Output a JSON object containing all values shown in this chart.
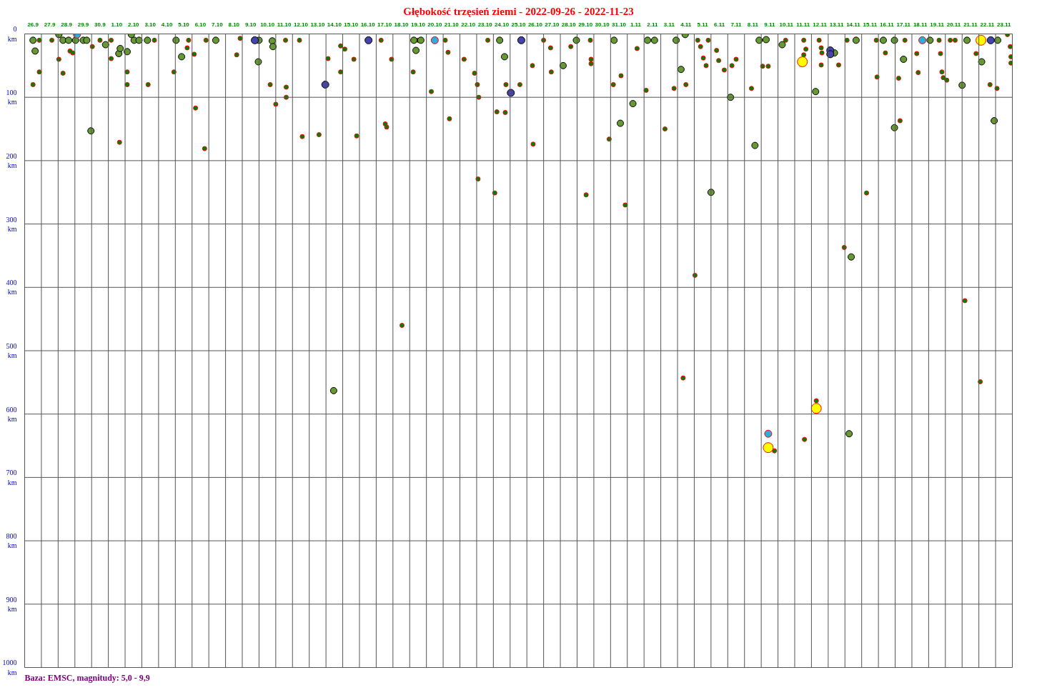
{
  "chart_data": {
    "type": "scatter",
    "title": "Głębokość trzęsień ziemi - 2022-09-26 - 2022-11-23",
    "annotations": [
      "Baza: EMSC, magnitudy: 5,0 - 9,9"
    ],
    "marker": "circle",
    "grid": true,
    "xlim": [
      "2022-09-26",
      "2022-11-24"
    ],
    "ylim": [
      1000,
      0
    ],
    "yticks": [
      {
        "value": 0,
        "label": "0\nkm"
      },
      {
        "value": 100,
        "label": "100\nkm"
      },
      {
        "value": 200,
        "label": "200\nkm"
      },
      {
        "value": 300,
        "label": "300\nkm"
      },
      {
        "value": 400,
        "label": "400\nkm"
      },
      {
        "value": 500,
        "label": "500\nkm"
      },
      {
        "value": 600,
        "label": "600\nkm"
      },
      {
        "value": 700,
        "label": "700\nkm"
      },
      {
        "value": 800,
        "label": "800\nkm"
      },
      {
        "value": 900,
        "label": "900\nkm"
      },
      {
        "value": 1000,
        "label": "1000\nkm"
      }
    ],
    "xticks": [
      {
        "value": "2022-09-26T12:00",
        "label": "26.9"
      },
      {
        "value": "2022-09-27T12:00",
        "label": "27.9"
      },
      {
        "value": "2022-09-28T12:00",
        "label": "28.9"
      },
      {
        "value": "2022-09-29T12:00",
        "label": "29.9"
      },
      {
        "value": "2022-09-30T12:00",
        "label": "30.9"
      },
      {
        "value": "2022-10-01T12:00",
        "label": "1.10"
      },
      {
        "value": "2022-10-02T12:00",
        "label": "2.10"
      },
      {
        "value": "2022-10-03T12:00",
        "label": "3.10"
      },
      {
        "value": "2022-10-04T12:00",
        "label": "4.10"
      },
      {
        "value": "2022-10-05T12:00",
        "label": "5.10"
      },
      {
        "value": "2022-10-06T12:00",
        "label": "6.10"
      },
      {
        "value": "2022-10-07T12:00",
        "label": "7.10"
      },
      {
        "value": "2022-10-08T12:00",
        "label": "8.10"
      },
      {
        "value": "2022-10-09T12:00",
        "label": "9.10"
      },
      {
        "value": "2022-10-10T12:00",
        "label": "10.10"
      },
      {
        "value": "2022-10-11T12:00",
        "label": "11.10"
      },
      {
        "value": "2022-10-12T12:00",
        "label": "12.10"
      },
      {
        "value": "2022-10-13T12:00",
        "label": "13.10"
      },
      {
        "value": "2022-10-14T12:00",
        "label": "14.10"
      },
      {
        "value": "2022-10-15T12:00",
        "label": "15.10"
      },
      {
        "value": "2022-10-16T12:00",
        "label": "16.10"
      },
      {
        "value": "2022-10-17T12:00",
        "label": "17.10"
      },
      {
        "value": "2022-10-18T12:00",
        "label": "18.10"
      },
      {
        "value": "2022-10-19T12:00",
        "label": "19.10"
      },
      {
        "value": "2022-10-20T12:00",
        "label": "20.10"
      },
      {
        "value": "2022-10-21T12:00",
        "label": "21.10"
      },
      {
        "value": "2022-10-22T12:00",
        "label": "22.10"
      },
      {
        "value": "2022-10-23T12:00",
        "label": "23.10"
      },
      {
        "value": "2022-10-24T12:00",
        "label": "24.10"
      },
      {
        "value": "2022-10-25T12:00",
        "label": "25.10"
      },
      {
        "value": "2022-10-26T12:00",
        "label": "26.10"
      },
      {
        "value": "2022-10-27T12:00",
        "label": "27.10"
      },
      {
        "value": "2022-10-28T12:00",
        "label": "28.10"
      },
      {
        "value": "2022-10-29T12:00",
        "label": "29.10"
      },
      {
        "value": "2022-10-30T12:00",
        "label": "30.10"
      },
      {
        "value": "2022-10-31T12:00",
        "label": "31.10"
      },
      {
        "value": "2022-11-01T12:00",
        "label": "1.11"
      },
      {
        "value": "2022-11-02T12:00",
        "label": "2.11"
      },
      {
        "value": "2022-11-03T12:00",
        "label": "3.11"
      },
      {
        "value": "2022-11-04T12:00",
        "label": "4.11"
      },
      {
        "value": "2022-11-05T12:00",
        "label": "5.11"
      },
      {
        "value": "2022-11-06T12:00",
        "label": "6.11"
      },
      {
        "value": "2022-11-07T12:00",
        "label": "7.11"
      },
      {
        "value": "2022-11-08T12:00",
        "label": "8.11"
      },
      {
        "value": "2022-11-09T12:00",
        "label": "9.11"
      },
      {
        "value": "2022-11-10T12:00",
        "label": "10.11"
      },
      {
        "value": "2022-11-11T12:00",
        "label": "11.11"
      },
      {
        "value": "2022-11-12T12:00",
        "label": "12.11"
      },
      {
        "value": "2022-11-13T12:00",
        "label": "13.11"
      },
      {
        "value": "2022-11-14T12:00",
        "label": "14.11"
      },
      {
        "value": "2022-11-15T12:00",
        "label": "15.11"
      },
      {
        "value": "2022-11-16T12:00",
        "label": "16.11"
      },
      {
        "value": "2022-11-17T12:00",
        "label": "17.11"
      },
      {
        "value": "2022-11-18T12:00",
        "label": "18.11"
      },
      {
        "value": "2022-11-19T12:00",
        "label": "19.11"
      },
      {
        "value": "2022-11-20T12:00",
        "label": "20.11"
      },
      {
        "value": "2022-11-21T12:00",
        "label": "21.11"
      },
      {
        "value": "2022-11-22T12:00",
        "label": "22.11"
      },
      {
        "value": "2022-11-23T12:00",
        "label": "23.11"
      },
      {
        "value": "2022-09-27",
        "label": null
      },
      {
        "value": "2022-09-28",
        "label": null
      },
      {
        "value": "2022-09-29",
        "label": null
      },
      {
        "value": "2022-09-30",
        "label": null
      },
      {
        "value": "2022-10-01",
        "label": null
      },
      {
        "value": "2022-10-02",
        "label": null
      },
      {
        "value": "2022-10-03",
        "label": null
      },
      {
        "value": "2022-10-04",
        "label": null
      },
      {
        "value": "2022-10-05",
        "label": null
      },
      {
        "value": "2022-10-06",
        "label": null
      },
      {
        "value": "2022-10-07",
        "label": null
      },
      {
        "value": "2022-10-08",
        "label": null
      },
      {
        "value": "2022-10-09",
        "label": null
      },
      {
        "value": "2022-10-10",
        "label": null
      },
      {
        "value": "2022-10-11",
        "label": null
      },
      {
        "value": "2022-10-12",
        "label": null
      },
      {
        "value": "2022-10-13",
        "label": null
      },
      {
        "value": "2022-10-14",
        "label": null
      },
      {
        "value": "2022-10-15",
        "label": null
      },
      {
        "value": "2022-10-16",
        "label": null
      },
      {
        "value": "2022-10-17",
        "label": null
      },
      {
        "value": "2022-10-18",
        "label": null
      },
      {
        "value": "2022-10-19",
        "label": null
      },
      {
        "value": "2022-10-20",
        "label": null
      },
      {
        "value": "2022-10-21",
        "label": null
      },
      {
        "value": "2022-10-22",
        "label": null
      },
      {
        "value": "2022-10-23",
        "label": null
      },
      {
        "value": "2022-10-24",
        "label": null
      },
      {
        "value": "2022-10-25",
        "label": null
      },
      {
        "value": "2022-10-26",
        "label": null
      },
      {
        "value": "2022-10-27",
        "label": null
      },
      {
        "value": "2022-10-28",
        "label": null
      },
      {
        "value": "2022-10-29",
        "label": null
      },
      {
        "value": "2022-10-30",
        "label": null
      },
      {
        "value": "2022-10-31",
        "label": null
      },
      {
        "value": "2022-11-01",
        "label": null
      },
      {
        "value": "2022-11-02",
        "label": null
      },
      {
        "value": "2022-11-03",
        "label": null
      },
      {
        "value": "2022-11-04",
        "label": null
      },
      {
        "value": "2022-11-05",
        "label": null
      },
      {
        "value": "2022-11-06",
        "label": null
      },
      {
        "value": "2022-11-07",
        "label": null
      },
      {
        "value": "2022-11-08",
        "label": null
      },
      {
        "value": "2022-11-09",
        "label": null
      },
      {
        "value": "2022-11-10",
        "label": null
      },
      {
        "value": "2022-11-11",
        "label": null
      },
      {
        "value": "2022-11-12",
        "label": null
      },
      {
        "value": "2022-11-13",
        "label": null
      },
      {
        "value": "2022-11-14",
        "label": null
      },
      {
        "value": "2022-11-15",
        "label": null
      },
      {
        "value": "2022-11-16",
        "label": null
      },
      {
        "value": "2022-11-17",
        "label": null
      },
      {
        "value": "2022-11-18",
        "label": null
      },
      {
        "value": "2022-11-19",
        "label": null
      },
      {
        "value": "2022-11-20",
        "label": null
      },
      {
        "value": "2022-11-21",
        "label": null
      },
      {
        "value": "2022-11-22",
        "label": null
      },
      {
        "value": "2022-11-23",
        "label": null
      }
    ],
    "series": [
      {
        "color": "#008000",
        "x": [
          "2022-09-26T12:00",
          "2022-09-26T21:00",
          "2022-09-26T21:00",
          "2022-09-27T15:00",
          "2022-09-28T01:00",
          "2022-09-28T07:00",
          "2022-09-28T17:00",
          "2022-09-28T21:00",
          "2022-09-30T01:00",
          "2022-09-30T12:00",
          "2022-10-01T04:00",
          "2022-10-01T04:00",
          "2022-10-01T16:00",
          "2022-10-02T03:00",
          "2022-10-02T03:00",
          "2022-10-03T09:00",
          "2022-10-03T18:00",
          "2022-10-04T22:00",
          "2022-10-05T17:00",
          "2022-10-05T19:00",
          "2022-10-06T03:00",
          "2022-10-06T05:00",
          "2022-10-06T18:00",
          "2022-10-06T20:00",
          "2022-10-08T16:00",
          "2022-10-08T21:00",
          "2022-10-10T16:00",
          "2022-10-11T00:00",
          "2022-10-11T14:00",
          "2022-10-11T15:00",
          "2022-10-11T15:00",
          "2022-10-12T10:00",
          "2022-10-12T14:00",
          "2022-10-13T14:00",
          "2022-10-14T03:00",
          "2022-10-14T21:00",
          "2022-10-14T21:00",
          "2022-10-15T03:00",
          "2022-10-15T16:00",
          "2022-10-15T20:00",
          "2022-10-17T07:00",
          "2022-10-17T13:00",
          "2022-10-17T15:00",
          "2022-10-17T22:00",
          "2022-10-18T13:00",
          "2022-10-19T05:00",
          "2022-10-19T12:00",
          "2022-10-20T07:00",
          "2022-10-21T03:00",
          "2022-10-21T07:00",
          "2022-10-21T09:00",
          "2022-10-22T06:00",
          "2022-10-22T21:00",
          "2022-10-23T01:00",
          "2022-10-23T03:00",
          "2022-10-23T02:00",
          "2022-10-23T16:00",
          "2022-10-24T05:00",
          "2022-10-24T02:00",
          "2022-10-24T17:00",
          "2022-10-24T18:00",
          "2022-10-25T14:00",
          "2022-10-26T08:00",
          "2022-10-26T09:00",
          "2022-10-27T00:00",
          "2022-10-27T11:00",
          "2022-10-27T10:00",
          "2022-10-28T15:00",
          "2022-10-29T13:00",
          "2022-10-29T19:00",
          "2022-10-29T20:00",
          "2022-10-29T20:00",
          "2022-10-30T22:00",
          "2022-10-31T04:00",
          "2022-10-31T15:00",
          "2022-10-31T21:00",
          "2022-11-01T14:00",
          "2022-11-02T03:00",
          "2022-11-03T06:00",
          "2022-11-03T19:00",
          "2022-11-04T08:00",
          "2022-11-04T12:00",
          "2022-11-05T01:00",
          "2022-11-05T05:00",
          "2022-11-05T09:00",
          "2022-11-05T13:00",
          "2022-11-05T17:00",
          "2022-11-05T20:00",
          "2022-11-06T08:00",
          "2022-11-06T11:00",
          "2022-11-06T19:00",
          "2022-11-07T06:00",
          "2022-11-07T12:00",
          "2022-11-08T10:00",
          "2022-11-09T02:00",
          "2022-11-09T10:00",
          "2022-11-09T19:00",
          "2022-11-10T11:00",
          "2022-11-11T13:00",
          "2022-11-11T13:00",
          "2022-11-11T14:00",
          "2022-11-11T16:00",
          "2022-11-12T07:00",
          "2022-11-12T11:00",
          "2022-11-12T14:00",
          "2022-11-12T15:00",
          "2022-11-12T14:00",
          "2022-11-13T15:00",
          "2022-11-13T23:00",
          "2022-11-14T03:00",
          "2022-11-15T07:00",
          "2022-11-15T21:00",
          "2022-11-15T22:00",
          "2022-11-16T10:00",
          "2022-11-17T05:00",
          "2022-11-17T07:00",
          "2022-11-17T14:00",
          "2022-11-18T07:00",
          "2022-11-18T09:00",
          "2022-11-19T15:00",
          "2022-11-19T17:00",
          "2022-11-19T19:00",
          "2022-11-19T21:00",
          "2022-11-20T02:00",
          "2022-11-20T07:00",
          "2022-11-20T14:00",
          "2022-11-21T04:00",
          "2022-11-21T20:00",
          "2022-11-22T02:00",
          "2022-11-22T16:00",
          "2022-11-23T02:00",
          "2022-11-23T17:00",
          "2022-11-23T21:00",
          "2022-11-23T22:00",
          "2022-11-23T22:00"
        ],
        "values": [
          80,
          10,
          60,
          10,
          40,
          62,
          27,
          30,
          20,
          10,
          39,
          10,
          171,
          60,
          80,
          80,
          10,
          60,
          22,
          10,
          32,
          117,
          181,
          10,
          33,
          7,
          80,
          111,
          10,
          84,
          100,
          10,
          162,
          159,
          39,
          19,
          60,
          24,
          40,
          161,
          10,
          142,
          147,
          40,
          460,
          60,
          10,
          91,
          10,
          29,
          134,
          40,
          62,
          80,
          100,
          229,
          10,
          123,
          251,
          124,
          80,
          80,
          50,
          174,
          10,
          60,
          22,
          20,
          254,
          10,
          40,
          47,
          166,
          80,
          66,
          270,
          23,
          89,
          150,
          86,
          543,
          80,
          381,
          10,
          20,
          38,
          50,
          10,
          26,
          42,
          57,
          50,
          40,
          86,
          51,
          51,
          658,
          10,
          10,
          33,
          640,
          24,
          579,
          10,
          22,
          30,
          49,
          49,
          337,
          10,
          251,
          10,
          68,
          30,
          70,
          137,
          10,
          31,
          61,
          10,
          31,
          60,
          69,
          73,
          10,
          10,
          421,
          31,
          549,
          80,
          86,
          1,
          20,
          36,
          46
        ]
      },
      {
        "color": "#669933",
        "x": [
          "2022-09-26T12:00",
          "2022-09-26T15:00",
          "2022-09-28T01:00",
          "2022-09-28T07:00",
          "2022-09-28T15:00",
          "2022-09-29T01:00",
          "2022-09-29T12:00",
          "2022-09-29T17:00",
          "2022-09-29T23:00",
          "2022-09-30T20:00",
          "2022-10-01T15:00",
          "2022-10-01T17:00",
          "2022-10-02T03:00",
          "2022-10-02T09:00",
          "2022-10-02T13:00",
          "2022-10-02T20:00",
          "2022-10-03T08:00",
          "2022-10-05T01:00",
          "2022-10-05T09:00",
          "2022-10-07T10:00",
          "2022-10-10T00:00",
          "2022-10-09T23:00",
          "2022-10-10T19:00",
          "2022-10-10T20:00",
          "2022-10-14T11:00",
          "2022-10-19T06:00",
          "2022-10-19T09:00",
          "2022-10-19T16:00",
          "2022-10-24T09:00",
          "2022-10-24T16:00",
          "2022-10-28T04:00",
          "2022-10-28T23:00",
          "2022-10-31T05:00",
          "2022-10-31T14:00",
          "2022-11-01T08:00",
          "2022-11-02T05:00",
          "2022-11-02T15:00",
          "2022-11-03T22:00",
          "2022-11-04T05:00",
          "2022-11-04T11:00",
          "2022-11-06T00:00",
          "2022-11-07T04:00",
          "2022-11-08T15:00",
          "2022-11-08T21:00",
          "2022-11-09T07:00",
          "2022-11-10T06:00",
          "2022-11-12T06:00",
          "2022-11-13T09:00",
          "2022-11-14T09:00",
          "2022-11-14T06:00",
          "2022-11-14T16:00",
          "2022-11-16T07:00",
          "2022-11-16T23:00",
          "2022-11-16T23:00",
          "2022-11-17T12:00",
          "2022-11-19T02:00",
          "2022-11-21T00:00",
          "2022-11-21T07:00",
          "2022-11-22T04:00",
          "2022-11-22T22:00",
          "2022-11-23T03:00"
        ],
        "values": [
          10,
          27,
          1,
          10,
          10,
          10,
          10,
          10,
          153,
          17,
          31,
          23,
          28,
          1,
          10,
          10,
          10,
          10,
          36,
          10,
          10,
          44,
          11,
          20,
          563,
          10,
          26,
          10,
          10,
          36,
          50,
          10,
          10,
          141,
          110,
          10,
          10,
          10,
          56,
          1,
          250,
          100,
          176,
          10,
          9,
          17,
          91,
          30,
          352,
          631,
          10,
          10,
          10,
          148,
          40,
          10,
          81,
          10,
          44,
          137,
          10
        ]
      },
      {
        "color": "#4444aa",
        "x": [
          "2022-10-09T18:00",
          "2022-10-13T23:00",
          "2022-10-16T13:00",
          "2022-10-25T01:00",
          "2022-10-25T16:00",
          "2022-11-13T03:00",
          "2022-11-13T03:00",
          "2022-11-22T17:00"
        ],
        "values": [
          10,
          80,
          10,
          93,
          10,
          26,
          32,
          10
        ]
      },
      {
        "color": "#33aadd",
        "x": [
          "2022-09-29T03:00",
          "2022-10-20T12:00",
          "2022-11-18T15:00",
          "2022-11-09T10:00"
        ],
        "values": [
          1,
          10,
          10,
          631
        ]
      },
      {
        "color": "#ffff00",
        "x": [
          "2022-11-11T11:00",
          "2022-11-12T07:00",
          "2022-11-09T10:00",
          "2022-11-22T03:00"
        ],
        "values": [
          44,
          591,
          653,
          10
        ]
      }
    ]
  }
}
